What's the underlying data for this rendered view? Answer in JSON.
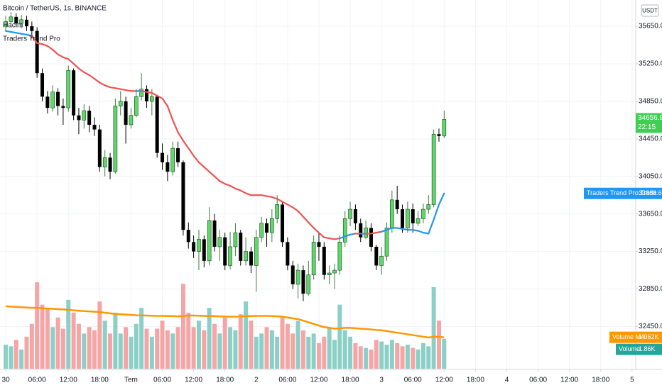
{
  "chart_data": {
    "type": "candlestick",
    "title": "Bitcoin / TetherUS, 1s, BINANCE",
    "currency": "USDT",
    "countdown": "22:15",
    "x": [
      0,
      1,
      2,
      3,
      4,
      5,
      6,
      7,
      8,
      9,
      10,
      11,
      12,
      13,
      14,
      15,
      16,
      17,
      18,
      19,
      20,
      21,
      22,
      23,
      24,
      25,
      26,
      27,
      28,
      29,
      30,
      31,
      32,
      33,
      34,
      35,
      36,
      37,
      38,
      39,
      40,
      41,
      42,
      43,
      44,
      45,
      46,
      47,
      48,
      49,
      50,
      51,
      52,
      53,
      54,
      55,
      56,
      57,
      58,
      59,
      60,
      61,
      62,
      63,
      64,
      65,
      66,
      67,
      68,
      69,
      70,
      71,
      72,
      73,
      74,
      75,
      76,
      77,
      78,
      79,
      80,
      81,
      82,
      83,
      84
    ],
    "open": [
      35650,
      35700,
      35750,
      35680,
      35720,
      35650,
      35600,
      35150,
      34900,
      34780,
      34950,
      34800,
      34780,
      35180,
      34700,
      34650,
      34750,
      34600,
      34550,
      34150,
      34250,
      34100,
      34800,
      34850,
      34600,
      34700,
      34900,
      34980,
      34850,
      34900,
      34300,
      34200,
      34100,
      34350,
      34200,
      33480,
      33350,
      33250,
      33380,
      33150,
      33580,
      33300,
      33400,
      33100,
      33300,
      33450,
      33150,
      33250,
      33100,
      33400,
      33550,
      33450,
      33600,
      33750,
      33350,
      33100,
      32900,
      33050,
      32800,
      33000,
      33350,
      33300,
      33000,
      33020,
      33050,
      33350,
      33600,
      33700,
      33550,
      33400,
      33500,
      33300,
      33100,
      33200,
      33500,
      33800,
      33700,
      33500,
      33700,
      33550,
      33600,
      33700,
      33750,
      34500,
      34480
    ],
    "high": [
      35760,
      35800,
      35790,
      35770,
      35760,
      35700,
      35640,
      35200,
      34960,
      35020,
      34990,
      34880,
      35230,
      35200,
      34780,
      34820,
      34800,
      34680,
      34600,
      34330,
      34300,
      34880,
      34960,
      34900,
      34780,
      34980,
      35150,
      35020,
      34980,
      34920,
      34400,
      34280,
      34420,
      34420,
      34220,
      33560,
      33420,
      33480,
      33420,
      33720,
      33650,
      33480,
      33450,
      33460,
      33550,
      33480,
      33400,
      33300,
      33480,
      33620,
      33600,
      33700,
      33850,
      33780,
      33400,
      33150,
      33120,
      33100,
      33150,
      33420,
      33450,
      33350,
      33100,
      33120,
      33420,
      33680,
      33780,
      33750,
      33600,
      33580,
      33550,
      33320,
      33300,
      33560,
      33900,
      33950,
      33750,
      33780,
      33760,
      33680,
      33760,
      33850,
      34550,
      34560,
      34750
    ],
    "low": [
      35600,
      35660,
      35640,
      35630,
      35600,
      35520,
      35100,
      34850,
      34720,
      34740,
      34700,
      34600,
      34740,
      34650,
      34500,
      34560,
      34520,
      34480,
      34100,
      34050,
      34020,
      34080,
      34700,
      34400,
      34560,
      34680,
      34860,
      34780,
      34700,
      34250,
      34120,
      34000,
      34060,
      34150,
      33420,
      33280,
      33180,
      33050,
      33080,
      33100,
      33250,
      33150,
      33050,
      33060,
      33200,
      33100,
      33100,
      33020,
      32820,
      33350,
      33300,
      33350,
      33550,
      33300,
      33050,
      32850,
      32750,
      32720,
      32780,
      32950,
      33150,
      32950,
      32900,
      32850,
      33000,
      33300,
      33520,
      33480,
      33350,
      33380,
      33250,
      33050,
      33000,
      33150,
      33450,
      33650,
      33450,
      33450,
      33450,
      33520,
      33550,
      33650,
      33720,
      34420,
      34460
    ],
    "close": [
      35700,
      35750,
      35680,
      35720,
      35650,
      35600,
      35150,
      34900,
      34780,
      34950,
      34800,
      34780,
      35180,
      34700,
      34650,
      34750,
      34600,
      34550,
      34150,
      34250,
      34100,
      34800,
      34850,
      34600,
      34700,
      34900,
      34980,
      34850,
      34900,
      34300,
      34200,
      34100,
      34350,
      34200,
      33480,
      33350,
      33250,
      33380,
      33150,
      33580,
      33300,
      33400,
      33100,
      33300,
      33450,
      33150,
      33250,
      33100,
      33400,
      33550,
      33450,
      33600,
      33750,
      33350,
      33100,
      32900,
      33050,
      32800,
      33000,
      33350,
      33300,
      33000,
      33020,
      33050,
      33350,
      33600,
      33700,
      33550,
      33400,
      33500,
      33300,
      33100,
      33200,
      33500,
      33800,
      33700,
      33500,
      33700,
      33550,
      33600,
      33700,
      33750,
      34500,
      34480,
      34656.83
    ],
    "up_color": "#5fd86a",
    "down_color": "#000000",
    "last_price_color": "#3fcf55",
    "trend": {
      "name": "Traders Trend Pro",
      "axis_label": "Traders Trend Pro:Trade",
      "up_color": "#2196f3",
      "down_color": "#ef5350",
      "values": [
        35600,
        35590,
        35580,
        35570,
        35560,
        35550,
        35470,
        35460,
        35440,
        35400,
        35350,
        35320,
        35300,
        35250,
        35200,
        35160,
        35130,
        35090,
        35050,
        35020,
        35000,
        34990,
        34980,
        34970,
        34960,
        34960,
        34960,
        34950,
        34940,
        34910,
        34880,
        34800,
        34650,
        34520,
        34430,
        34350,
        34270,
        34200,
        34150,
        34100,
        34050,
        34000,
        33970,
        33950,
        33920,
        33900,
        33870,
        33850,
        33850,
        33850,
        33840,
        33830,
        33810,
        33780,
        33750,
        33720,
        33680,
        33620,
        33560,
        33500,
        33450,
        33400,
        33390,
        33380,
        33390,
        33410,
        33430,
        33440,
        33440,
        33440,
        33440,
        33450,
        33460,
        33480,
        33500,
        33500,
        33490,
        33480,
        33480,
        33470,
        33450,
        33440,
        33590,
        33750,
        33868.64
      ]
    },
    "volume": {
      "name": "Hacim",
      "axis_label": "Volume",
      "up_color": "#8ccfc7",
      "down_color": "#f5a5a5",
      "label_color": "#26a69a",
      "values": [
        1500,
        1400,
        1800,
        1200,
        2000,
        2800,
        5400,
        4000,
        3800,
        2600,
        3200,
        2500,
        4300,
        3500,
        2800,
        2200,
        2600,
        2400,
        4200,
        3000,
        2200,
        3500,
        2200,
        2600,
        2000,
        2800,
        3800,
        2500,
        2000,
        2500,
        3000,
        2400,
        2200,
        2600,
        5300,
        3500,
        2600,
        3000,
        2400,
        3800,
        2800,
        2200,
        3200,
        2600,
        2400,
        3400,
        4200,
        3000,
        2000,
        2200,
        2600,
        2400,
        2000,
        3200,
        2800,
        2200,
        3000,
        2400,
        2000,
        2200,
        1600,
        2000,
        2600,
        1800,
        4000,
        2400,
        2000,
        1600,
        1400,
        1300,
        1200,
        1800,
        1700,
        1500,
        1800,
        1600,
        1400,
        1500,
        1300,
        1200,
        1600,
        1400,
        5100,
        3000,
        1860
      ],
      "value_labels": {
        "84": "1.86K"
      },
      "lim": [
        0,
        5800
      ]
    },
    "volume_ma": {
      "name": "Volume MA",
      "color": "#ff9800",
      "values": [
        3900,
        3880,
        3860,
        3840,
        3820,
        3800,
        3800,
        3780,
        3760,
        3740,
        3720,
        3700,
        3680,
        3650,
        3620,
        3600,
        3580,
        3560,
        3540,
        3500,
        3460,
        3420,
        3400,
        3380,
        3360,
        3340,
        3330,
        3320,
        3310,
        3300,
        3300,
        3290,
        3280,
        3270,
        3300,
        3320,
        3320,
        3310,
        3300,
        3290,
        3280,
        3270,
        3260,
        3250,
        3250,
        3260,
        3280,
        3290,
        3300,
        3300,
        3300,
        3290,
        3270,
        3250,
        3200,
        3150,
        3100,
        3000,
        2900,
        2800,
        2700,
        2600,
        2550,
        2500,
        2520,
        2550,
        2550,
        2530,
        2500,
        2480,
        2450,
        2420,
        2400,
        2350,
        2300,
        2250,
        2200,
        2150,
        2100,
        2050,
        2000,
        1950,
        2000,
        1990,
        1962
      ],
      "value_labels": {
        "84": "1.962K"
      }
    },
    "xlim": [
      -1.1,
      120.7
    ],
    "xticks": [
      {
        "value": 0,
        "label": "30"
      },
      {
        "value": 6,
        "label": "06:00"
      },
      {
        "value": 12,
        "label": "12:00"
      },
      {
        "value": 18,
        "label": "18:00"
      },
      {
        "value": 24,
        "label": "Tem"
      },
      {
        "value": 30,
        "label": "06:00"
      },
      {
        "value": 36,
        "label": "12:00"
      },
      {
        "value": 42,
        "label": "18:00"
      },
      {
        "value": 48,
        "label": "2"
      },
      {
        "value": 54,
        "label": "06:00"
      },
      {
        "value": 60,
        "label": "12:00"
      },
      {
        "value": 66,
        "label": "18:00"
      },
      {
        "value": 72,
        "label": "3"
      },
      {
        "value": 78,
        "label": "06:00"
      },
      {
        "value": 84,
        "label": "12:00"
      },
      {
        "value": 90,
        "label": "18:00"
      },
      {
        "value": 96,
        "label": "4"
      },
      {
        "value": 102,
        "label": "06:00"
      },
      {
        "value": 108,
        "label": "12:00"
      },
      {
        "value": 114,
        "label": "18:00"
      },
      {
        "value": 120,
        "label": "5"
      }
    ],
    "ylim": [
      32000,
      35930
    ],
    "yticks": [
      {
        "value": 35650,
        "label": "35650.00"
      },
      {
        "value": 35250,
        "label": "35250.00"
      },
      {
        "value": 34850,
        "label": "34850.00"
      },
      {
        "value": 34450,
        "label": "34450.00"
      },
      {
        "value": 34050,
        "label": "34050.00"
      },
      {
        "value": 33650,
        "label": "33650.00"
      },
      {
        "value": 33250,
        "label": "33250.00"
      },
      {
        "value": 32850,
        "label": "32850.00"
      },
      {
        "value": 32450,
        "label": "32450.00"
      }
    ],
    "grid": true
  }
}
